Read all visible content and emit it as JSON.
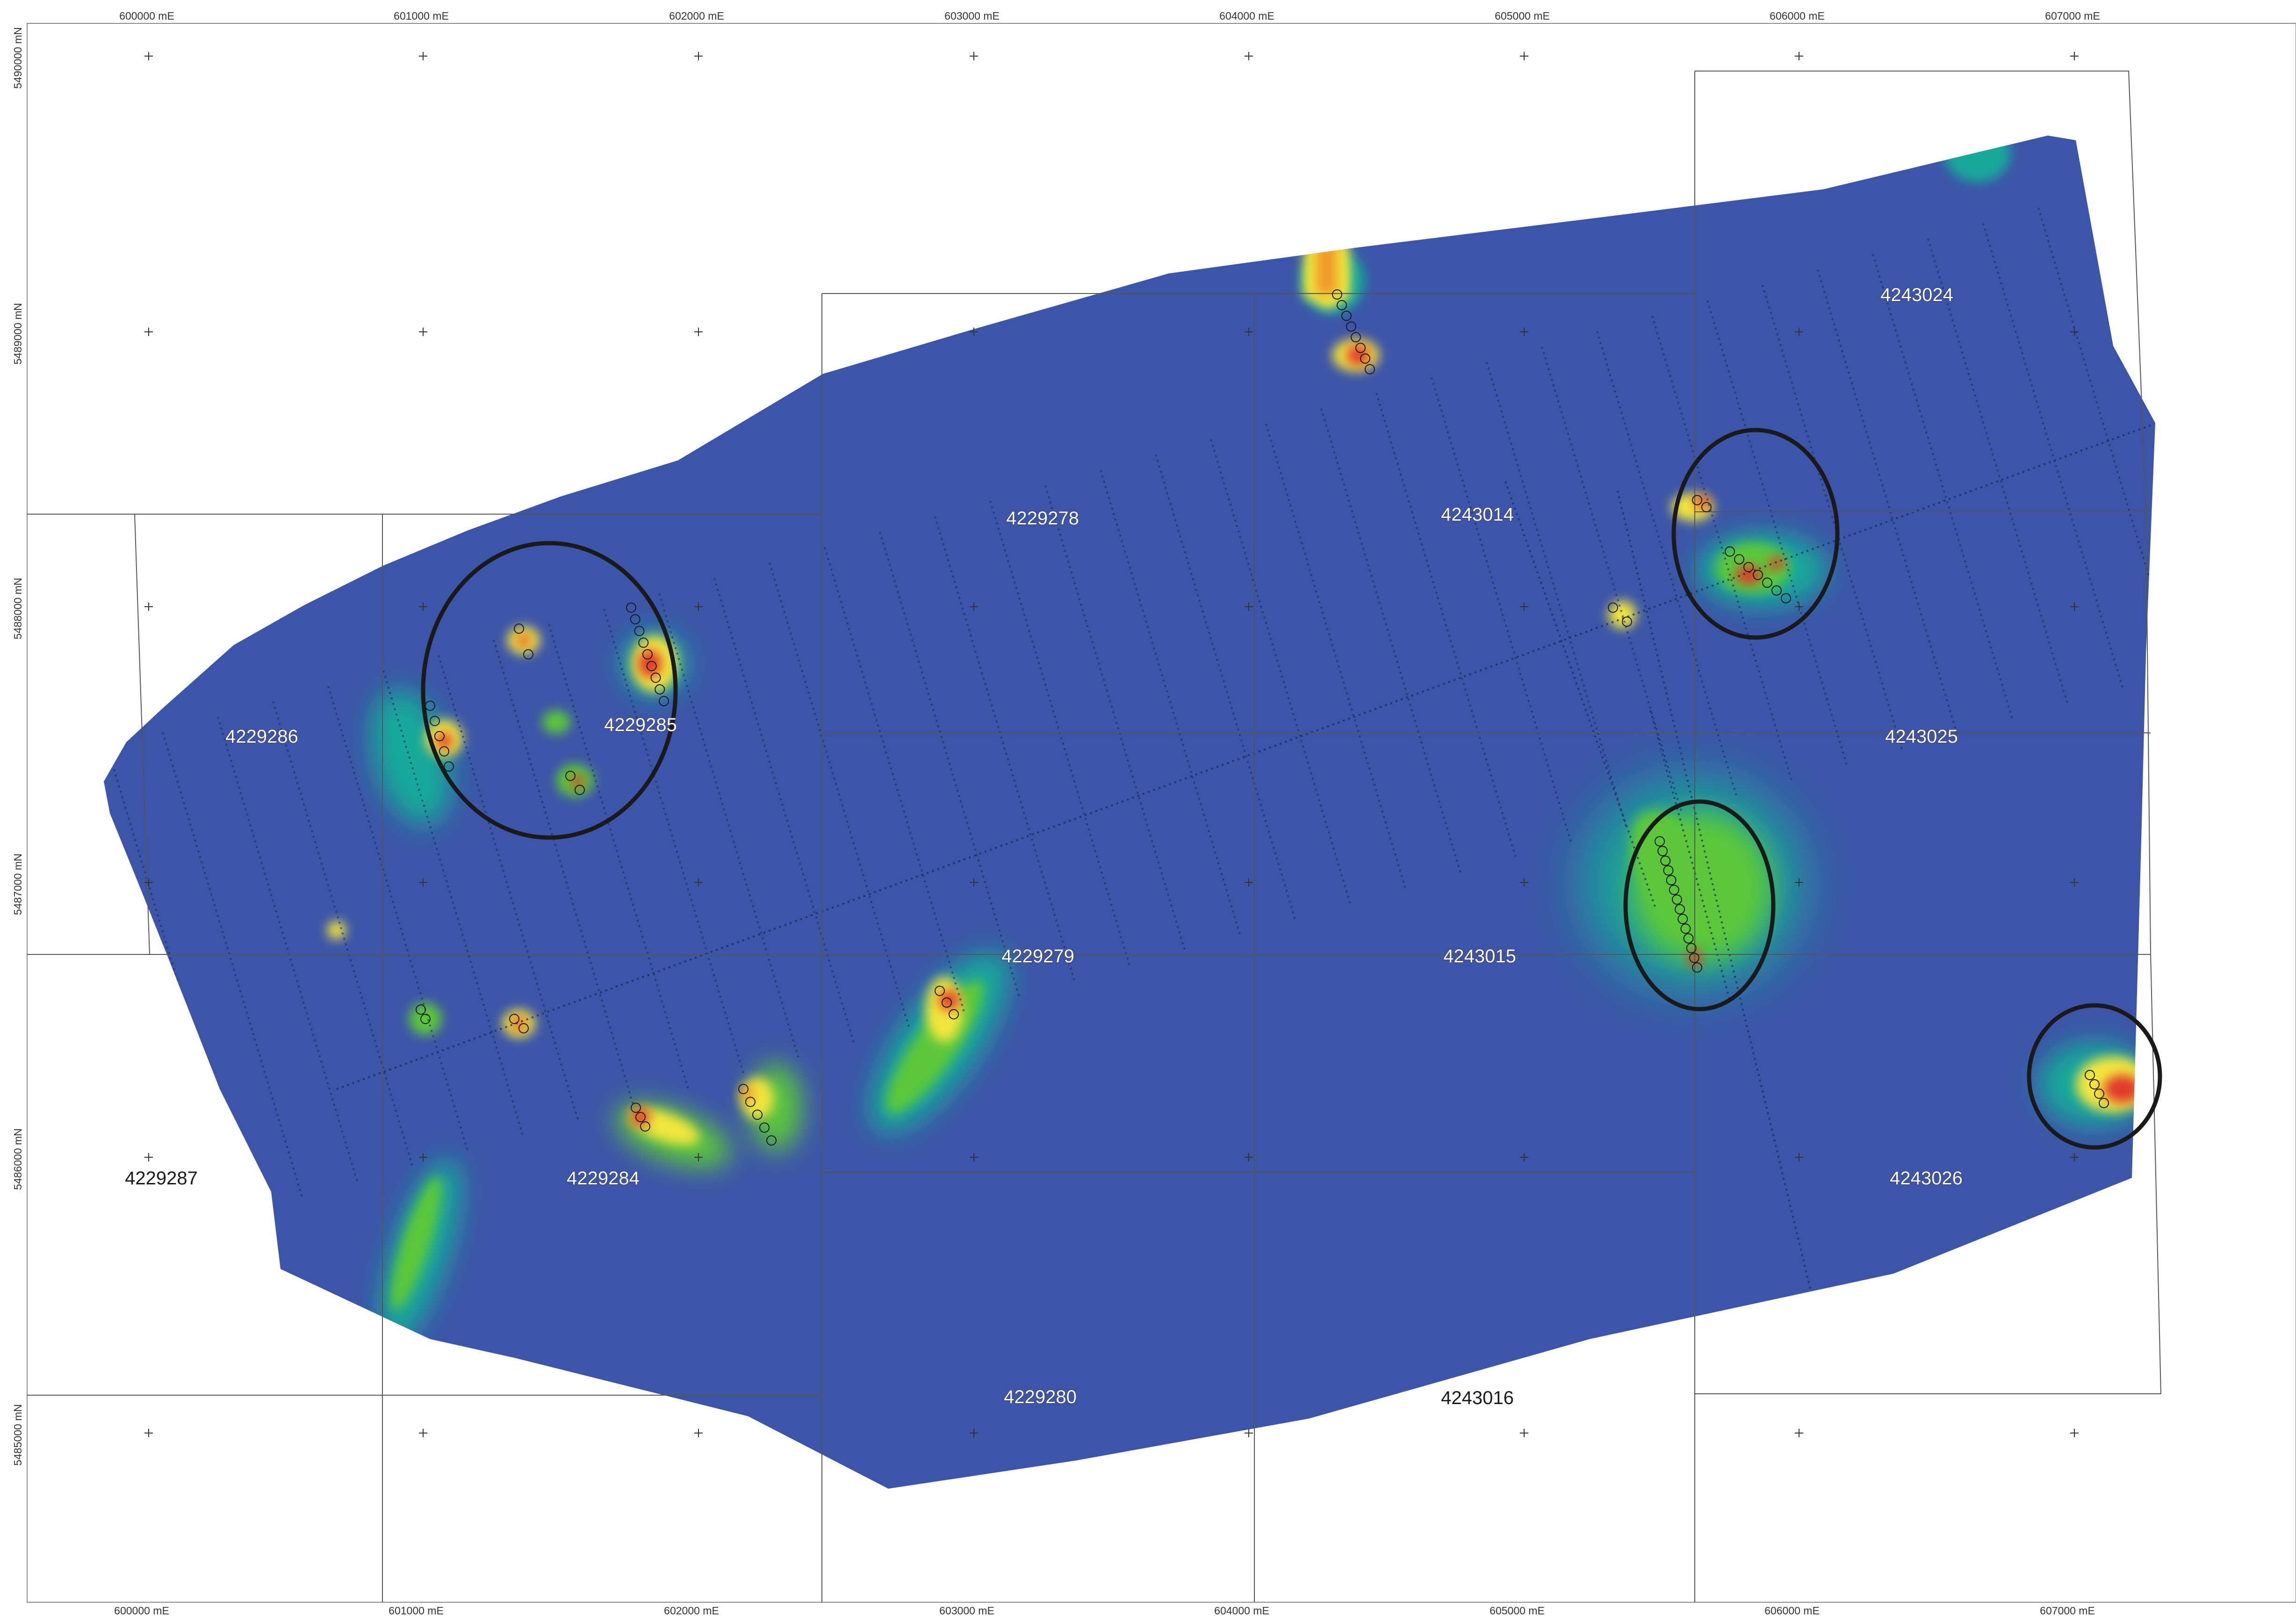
{
  "map": {
    "grid": {
      "eastings": [
        {
          "label": "600000 mE"
        },
        {
          "label": "601000 mE"
        },
        {
          "label": "602000 mE"
        },
        {
          "label": "603000 mE"
        },
        {
          "label": "604000 mE"
        },
        {
          "label": "605000 mE"
        },
        {
          "label": "606000 mE"
        },
        {
          "label": "607000 mE"
        }
      ],
      "northings": [
        {
          "label": "5490000 mN"
        },
        {
          "label": "5489000 mN"
        },
        {
          "label": "5488000 mN"
        },
        {
          "label": "5487000 mN"
        },
        {
          "label": "5486000 mN"
        },
        {
          "label": "5485000 mN"
        }
      ]
    },
    "claims": [
      {
        "id": "4229286",
        "outlined": true
      },
      {
        "id": "4229285",
        "outlined": true
      },
      {
        "id": "4229278",
        "outlined": true
      },
      {
        "id": "4243014",
        "outlined": true
      },
      {
        "id": "4243024",
        "outlined": true
      },
      {
        "id": "4243025",
        "outlined": true
      },
      {
        "id": "4229279",
        "outlined": true
      },
      {
        "id": "4243015",
        "outlined": true
      },
      {
        "id": "4229287",
        "outlined": false
      },
      {
        "id": "4229284",
        "outlined": true
      },
      {
        "id": "4243026",
        "outlined": true
      },
      {
        "id": "4229280",
        "outlined": true
      },
      {
        "id": "4243016",
        "outlined": false
      }
    ],
    "colors": {
      "background_field": "#3d55a8",
      "low": "#1f6fc4",
      "mid": "#16a99a",
      "high_green": "#5cc73a",
      "yellow": "#f1e63c",
      "orange": "#f09a28",
      "red": "#e03a2a",
      "claim_lines": "#555555",
      "survey_lines": "#1a2a5a",
      "target_circles": "#1a1a1a"
    }
  }
}
